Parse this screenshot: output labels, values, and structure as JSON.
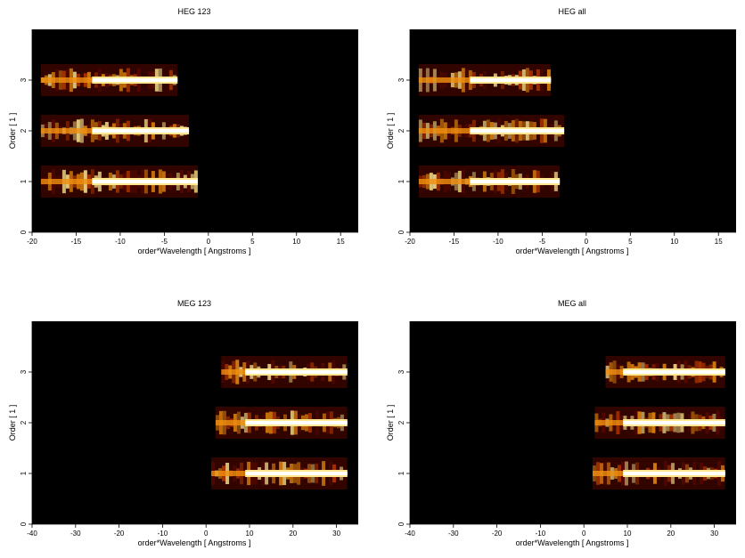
{
  "chart_data": [
    {
      "type": "heatmap",
      "title": "HEG 123",
      "xlabel": "order*Wavelength [ Angstroms ]",
      "ylabel": "Order [ 1 ]",
      "xlim": [
        -20,
        17
      ],
      "ylim": [
        0,
        4
      ],
      "xticks": [
        -20,
        -15,
        -10,
        -5,
        0,
        5,
        10,
        15
      ],
      "yticks": [
        0,
        1,
        2,
        3
      ],
      "background": "#000000",
      "colormap": [
        "#000000",
        "#5a0800",
        "#b83a00",
        "#f09010",
        "#ffe890",
        "#ffffff"
      ],
      "bands": [
        {
          "order": 3,
          "x_start": -19,
          "x_end": -3.5,
          "edge_x": -13.2
        },
        {
          "order": 2,
          "x_start": -19,
          "x_end": -2.2,
          "edge_x": -13.2
        },
        {
          "order": 1,
          "x_start": -19,
          "x_end": -1.2,
          "edge_x": -13.2
        }
      ]
    },
    {
      "type": "heatmap",
      "title": "HEG all",
      "xlabel": "order*Wavelength [ Angstroms ]",
      "ylabel": "Order [ 1 ]",
      "xlim": [
        -20,
        17
      ],
      "ylim": [
        0,
        4
      ],
      "xticks": [
        -20,
        -15,
        -10,
        -5,
        0,
        5,
        10,
        15
      ],
      "yticks": [
        0,
        1,
        2,
        3
      ],
      "background": "#000000",
      "colormap": [
        "#000000",
        "#5a0800",
        "#b83a00",
        "#f09010",
        "#ffe890",
        "#ffffff"
      ],
      "bands": [
        {
          "order": 3,
          "x_start": -19,
          "x_end": -4,
          "edge_x": -13.2
        },
        {
          "order": 2,
          "x_start": -19,
          "x_end": -2.5,
          "edge_x": -13.2
        },
        {
          "order": 1,
          "x_start": -19,
          "x_end": -3,
          "edge_x": -13.2
        }
      ]
    },
    {
      "type": "heatmap",
      "title": "MEG 123",
      "xlabel": "order*Wavelength [ Angstroms ]",
      "ylabel": "Order [ 1 ]",
      "xlim": [
        -40,
        35
      ],
      "ylim": [
        0,
        4
      ],
      "xticks": [
        -40,
        -30,
        -20,
        -10,
        0,
        10,
        20,
        30
      ],
      "yticks": [
        0,
        1,
        2,
        3
      ],
      "background": "#000000",
      "colormap": [
        "#000000",
        "#5a0800",
        "#b83a00",
        "#f09010",
        "#ffe890",
        "#ffffff"
      ],
      "bands": [
        {
          "order": 3,
          "x_start": 3.5,
          "x_end": 32.5,
          "edge_x": 9
        },
        {
          "order": 2,
          "x_start": 2.2,
          "x_end": 32.5,
          "edge_x": 9
        },
        {
          "order": 1,
          "x_start": 1.2,
          "x_end": 32.5,
          "edge_x": 9
        }
      ]
    },
    {
      "type": "heatmap",
      "title": "MEG all",
      "xlabel": "order*Wavelength [ Angstroms ]",
      "ylabel": "Order [ 1 ]",
      "xlim": [
        -40,
        35
      ],
      "ylim": [
        0,
        4
      ],
      "xticks": [
        -40,
        -30,
        -20,
        -10,
        0,
        10,
        20,
        30
      ],
      "yticks": [
        0,
        1,
        2,
        3
      ],
      "background": "#000000",
      "colormap": [
        "#000000",
        "#5a0800",
        "#b83a00",
        "#f09010",
        "#ffe890",
        "#ffffff"
      ],
      "bands": [
        {
          "order": 3,
          "x_start": 5,
          "x_end": 32.5,
          "edge_x": 9
        },
        {
          "order": 2,
          "x_start": 2.5,
          "x_end": 32.5,
          "edge_x": 9
        },
        {
          "order": 1,
          "x_start": 2,
          "x_end": 32.5,
          "edge_x": 9
        }
      ]
    }
  ]
}
